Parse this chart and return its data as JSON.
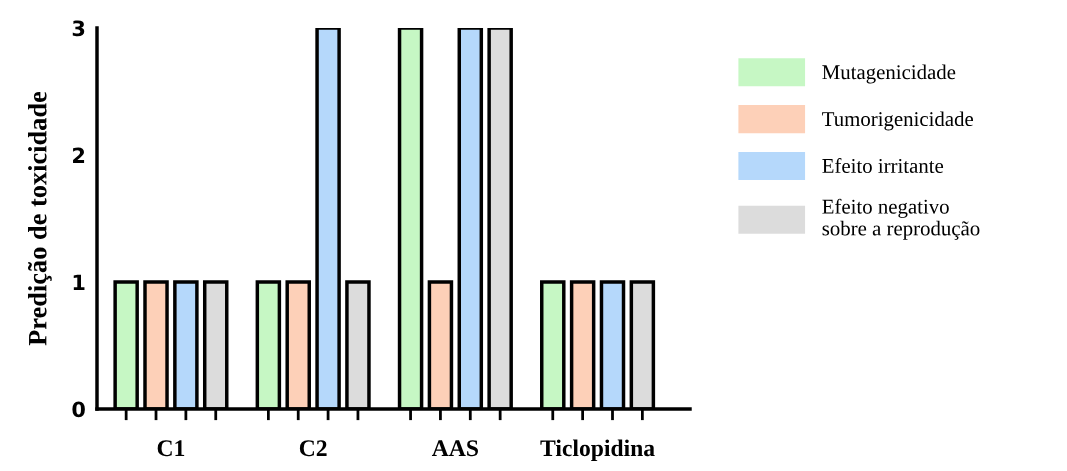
{
  "chart_data": {
    "type": "bar",
    "ylabel": "Predição de toxicidade",
    "categories": [
      "C1",
      "C2",
      "AAS",
      "Ticlopidina"
    ],
    "series": [
      {
        "name": "Mutagenicidade",
        "color": "#c6f7c4",
        "values": [
          1,
          1,
          3,
          1
        ]
      },
      {
        "name": "Tumorigenicidade",
        "color": "#fdd0b8",
        "values": [
          1,
          1,
          1,
          1
        ]
      },
      {
        "name": "Efeito irritante",
        "color": "#b5d8fb",
        "values": [
          1,
          3,
          3,
          1
        ]
      },
      {
        "name": "Efeito negativo\nsobre a reprodução",
        "color": "#dcdcdc",
        "values": [
          1,
          1,
          3,
          1
        ]
      }
    ],
    "ylim": [
      0,
      3
    ],
    "yticks": [
      0,
      1,
      2,
      3
    ],
    "grid": false,
    "legend": "right"
  }
}
